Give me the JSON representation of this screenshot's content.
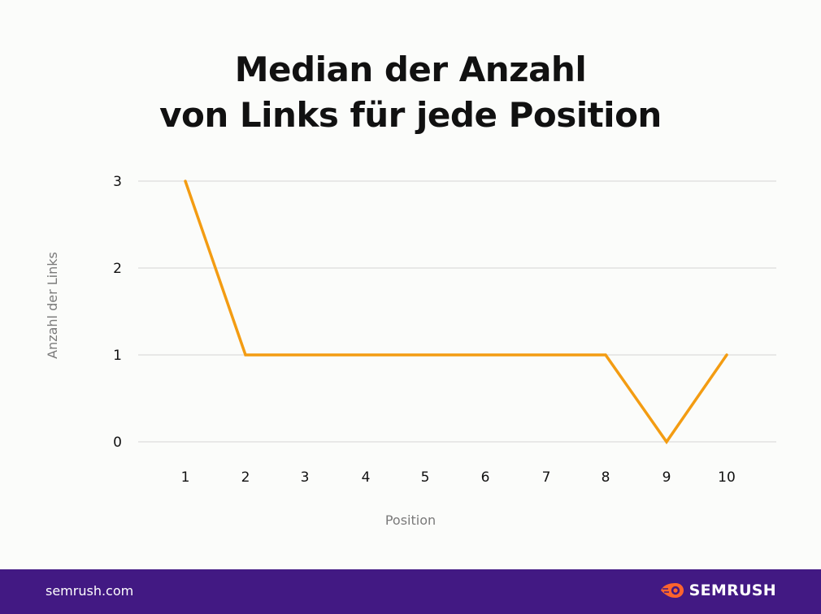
{
  "chart_data": {
    "type": "line",
    "title_lines": [
      "Median der Anzahl",
      "von Links für jede Position"
    ],
    "xlabel": "Position",
    "ylabel": "Anzahl der Links",
    "x": [
      1,
      2,
      3,
      4,
      5,
      6,
      7,
      8,
      9,
      10
    ],
    "y_ticks": [
      0,
      1,
      2,
      3
    ],
    "ylim": [
      0,
      3
    ],
    "grid": true,
    "legend": "none",
    "series": [
      {
        "values": [
          3,
          1,
          1,
          1,
          1,
          1,
          1,
          1,
          0,
          1
        ],
        "color": "#f39c12"
      }
    ]
  },
  "footer": {
    "domain": "semrush.com",
    "brand": "SEMRUSH",
    "background": "#421983",
    "logo_icon": "semrush-fire-icon",
    "logo_color": "#ff642d"
  },
  "colors": {
    "grid": "#dcdcdc",
    "text": "#111111",
    "axis_label": "#7a7a7a"
  }
}
